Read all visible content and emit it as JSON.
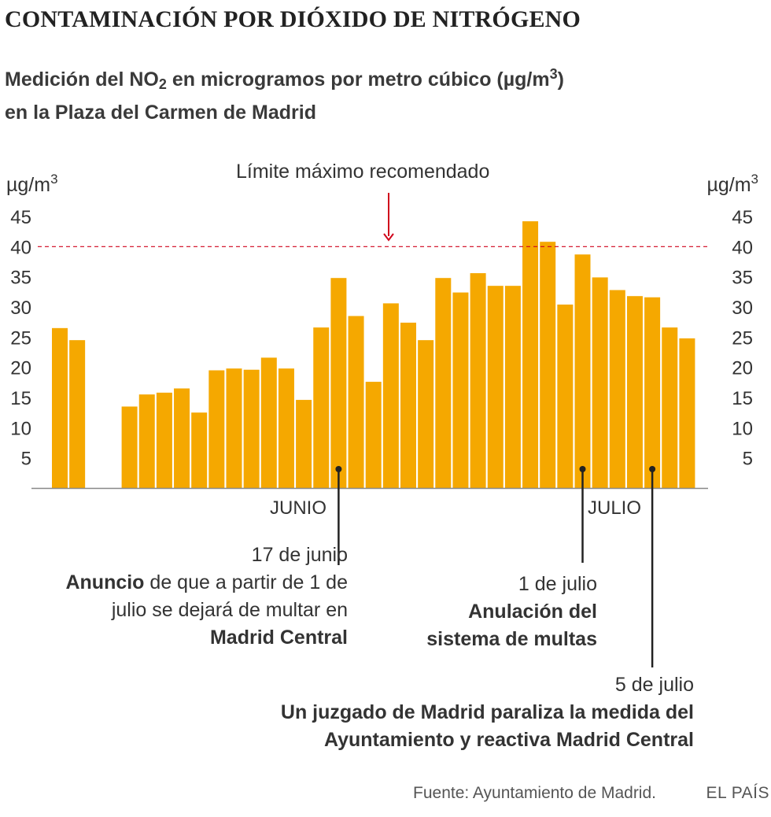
{
  "header": {
    "title": "CONTAMINACIÓN POR DIÓXIDO DE NITRÓGENO",
    "subtitle_pre": "Medición del NO",
    "subtitle_sub": "2",
    "subtitle_mid": " en microgramos por metro cúbico (µg/m",
    "subtitle_sup": "3",
    "subtitle_post": ")",
    "subtitle_line2": "en la Plaza del Carmen de Madrid"
  },
  "axis": {
    "unit": "µg/m",
    "unit_sup": "3"
  },
  "limit_label": "Límite máximo recomendado",
  "months": {
    "june": "JUNIO",
    "july": "JULIO"
  },
  "annotations": {
    "a1": {
      "date": "17 de junio",
      "bold1": "Anuncio",
      "text1": " de que a partir de 1 de",
      "text2": "julio se dejará de multar en",
      "bold2": "Madrid Central"
    },
    "a2": {
      "date": "1 de julio",
      "bold1": "Anulación del",
      "bold2": "sistema de multas"
    },
    "a3": {
      "date": "5 de julio",
      "bold1": "Un juzgado de Madrid paraliza la medida del",
      "bold2": "Ayuntamiento y reactiva Madrid Central"
    }
  },
  "footer": {
    "source": "Fuente: Ayuntamiento de Madrid.",
    "brand": "EL PAÍS"
  },
  "colors": {
    "bar": "#f5a800",
    "limit": "#d0021b",
    "axis": "#888888"
  },
  "chart_data": {
    "type": "bar",
    "title": "Medición del NO2 en microgramos por metro cúbico (µg/m3) en la Plaza del Carmen de Madrid",
    "ylabel": "µg/m3",
    "ylim": [
      0,
      45
    ],
    "yticks": [
      5,
      10,
      15,
      20,
      25,
      30,
      35,
      40,
      45
    ],
    "limit_value": 40,
    "values": [
      26.5,
      24.5,
      null,
      null,
      13.5,
      15.5,
      15.8,
      16.5,
      12.5,
      19.5,
      19.8,
      19.6,
      21.6,
      19.8,
      14.6,
      26.6,
      34.8,
      28.5,
      17.6,
      30.6,
      27.4,
      24.5,
      34.8,
      32.4,
      35.6,
      33.5,
      33.5,
      44.2,
      40.8,
      30.4,
      38.7,
      34.9,
      32.8,
      31.8,
      31.6,
      26.6,
      24.8
    ],
    "markers": [
      {
        "label": "17 de junio",
        "index": 16
      },
      {
        "label": "1 de julio",
        "index": 30
      },
      {
        "label": "5 de julio",
        "index": 34
      }
    ]
  }
}
